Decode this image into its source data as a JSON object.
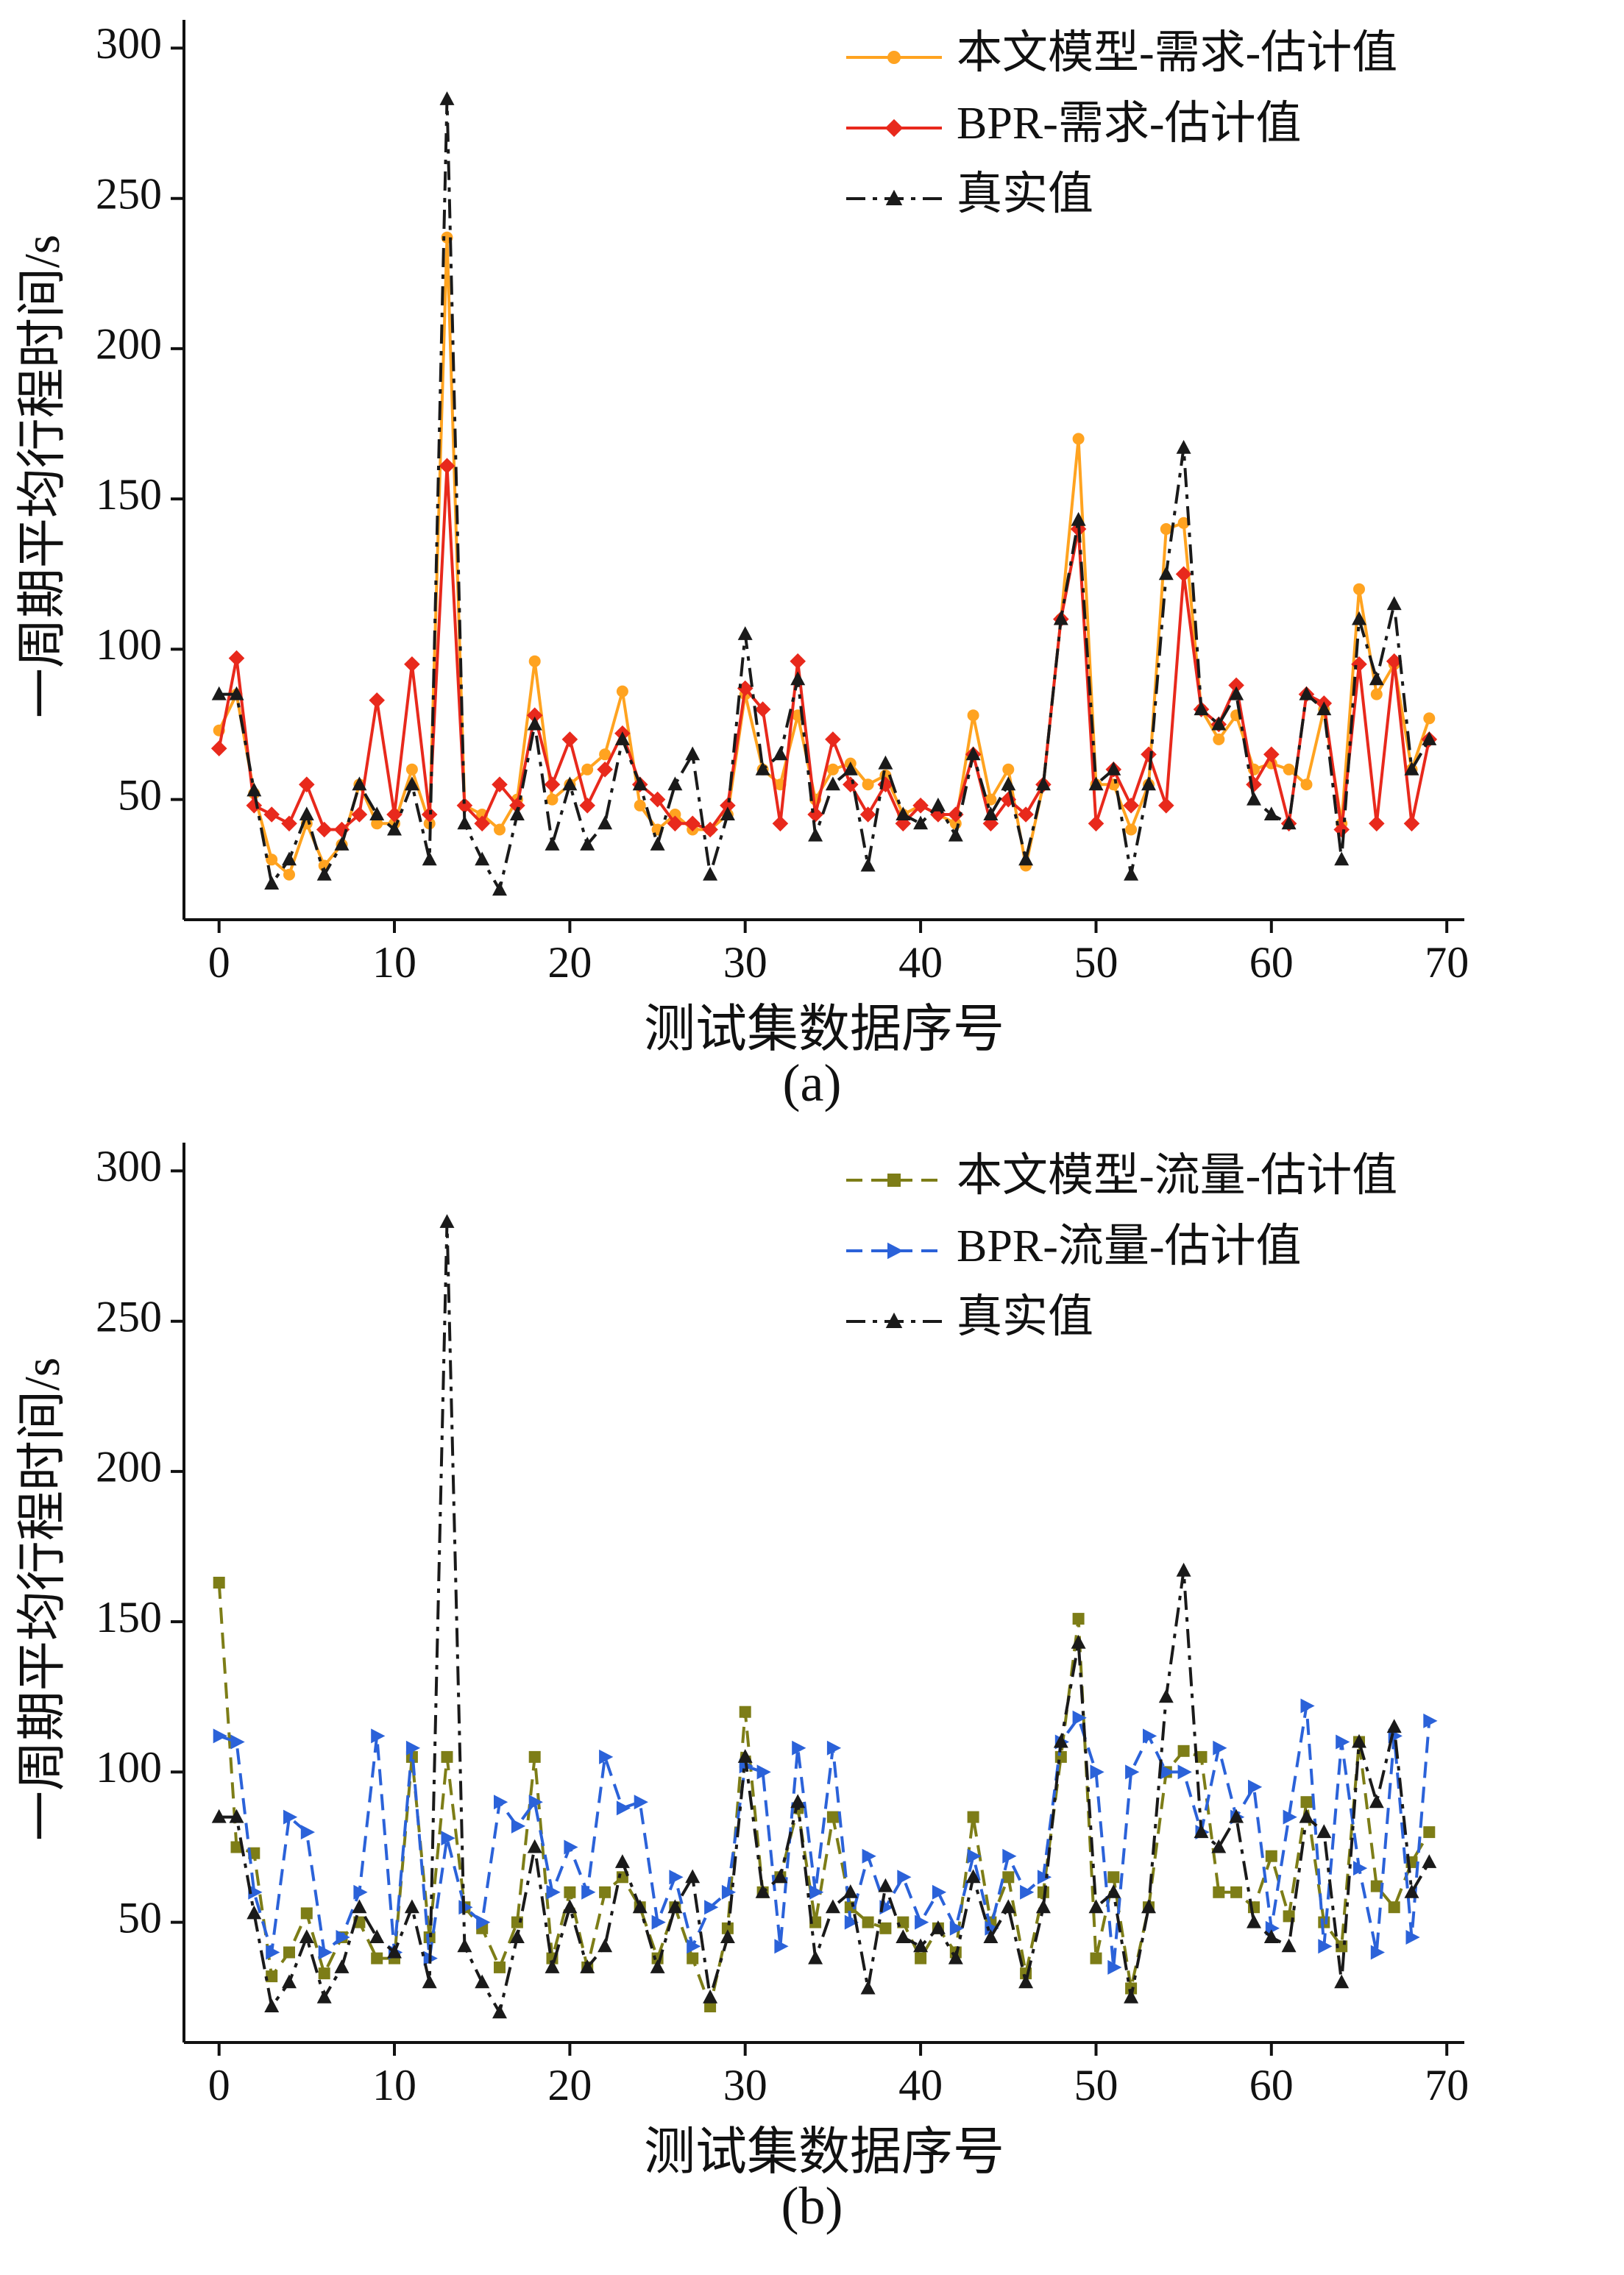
{
  "page": {
    "background": "#ffffff",
    "text_color": "#111111"
  },
  "chart_data": [
    {
      "type": "line",
      "caption": "(a)",
      "xlabel": "测试集数据序号",
      "ylabel": "一周期平均行程时间/s",
      "xlim": [
        -2,
        71
      ],
      "ylim": [
        10,
        305
      ],
      "xticks": [
        0,
        10,
        20,
        30,
        40,
        50,
        60,
        70
      ],
      "yticks": [
        50,
        100,
        150,
        200,
        250,
        300
      ],
      "grid": false,
      "legend_position": "top-right",
      "x_step": 1,
      "series": [
        {
          "name": "本文模型-需求-估计值",
          "color": "#FFA320",
          "dash": "solid",
          "marker": "circle",
          "values": [
            73,
            85,
            52,
            30,
            25,
            42,
            28,
            35,
            55,
            42,
            42,
            60,
            42,
            237,
            48,
            45,
            40,
            50,
            96,
            50,
            55,
            60,
            65,
            86,
            48,
            40,
            45,
            40,
            40,
            45,
            85,
            60,
            55,
            78,
            50,
            60,
            62,
            55,
            58,
            45,
            48,
            45,
            42,
            78,
            50,
            60,
            28,
            55,
            110,
            170,
            55,
            55,
            40,
            55,
            140,
            142,
            80,
            70,
            78,
            60,
            62,
            60,
            55,
            80,
            42,
            120,
            85,
            95,
            60,
            77
          ]
        },
        {
          "name": "BPR-需求-估计值",
          "color": "#E8291C",
          "dash": "solid",
          "marker": "diamond",
          "values": [
            67,
            97,
            48,
            45,
            42,
            55,
            40,
            40,
            45,
            83,
            45,
            95,
            45,
            161,
            48,
            42,
            55,
            48,
            78,
            55,
            70,
            48,
            60,
            72,
            55,
            50,
            42,
            42,
            40,
            48,
            87,
            80,
            42,
            96,
            45,
            70,
            55,
            45,
            55,
            42,
            48,
            45,
            45,
            65,
            42,
            50,
            45,
            55,
            110,
            140,
            42,
            60,
            48,
            65,
            48,
            125,
            80,
            75,
            88,
            55,
            65,
            42,
            85,
            82,
            40,
            95,
            42,
            96,
            42,
            70
          ]
        },
        {
          "name": "真实值",
          "color": "#1a1a1a",
          "dash": "dashdot",
          "marker": "triangle",
          "values": [
            85,
            85,
            53,
            22,
            30,
            45,
            25,
            35,
            55,
            45,
            40,
            55,
            30,
            283,
            42,
            30,
            20,
            45,
            75,
            35,
            55,
            35,
            42,
            70,
            55,
            35,
            55,
            65,
            25,
            45,
            105,
            60,
            65,
            90,
            38,
            55,
            60,
            28,
            62,
            45,
            42,
            48,
            38,
            65,
            45,
            55,
            30,
            55,
            110,
            143,
            55,
            60,
            25,
            55,
            125,
            167,
            80,
            75,
            85,
            50,
            45,
            42,
            85,
            80,
            30,
            110,
            90,
            115,
            60,
            70
          ]
        }
      ]
    },
    {
      "type": "line",
      "caption": "(b)",
      "xlabel": "测试集数据序号",
      "ylabel": "一周期平均行程时间/s",
      "xlim": [
        -2,
        71
      ],
      "ylim": [
        10,
        305
      ],
      "xticks": [
        0,
        10,
        20,
        30,
        40,
        50,
        60,
        70
      ],
      "yticks": [
        50,
        100,
        150,
        200,
        250,
        300
      ],
      "grid": false,
      "legend_position": "top-right",
      "x_step": 1,
      "series": [
        {
          "name": "本文模型-流量-估计值",
          "color": "#7D7D17",
          "dash": "dashed",
          "marker": "square",
          "values": [
            163,
            75,
            73,
            32,
            40,
            53,
            33,
            45,
            50,
            38,
            38,
            105,
            45,
            105,
            55,
            48,
            35,
            50,
            105,
            38,
            60,
            35,
            60,
            65,
            55,
            38,
            55,
            38,
            22,
            48,
            120,
            60,
            65,
            88,
            50,
            85,
            55,
            50,
            48,
            50,
            38,
            48,
            40,
            85,
            50,
            65,
            33,
            60,
            105,
            151,
            38,
            65,
            28,
            55,
            100,
            107,
            105,
            60,
            60,
            55,
            72,
            52,
            90,
            50,
            42,
            110,
            62,
            55,
            70,
            80
          ]
        },
        {
          "name": "BPR-流量-估计值",
          "color": "#2B62D9",
          "dash": "dashed",
          "marker": "tri-right",
          "values": [
            112,
            110,
            60,
            40,
            85,
            80,
            40,
            45,
            60,
            112,
            40,
            108,
            38,
            78,
            55,
            50,
            90,
            82,
            90,
            60,
            75,
            60,
            105,
            88,
            90,
            50,
            65,
            42,
            55,
            60,
            102,
            100,
            42,
            108,
            60,
            108,
            50,
            72,
            55,
            65,
            50,
            60,
            48,
            72,
            48,
            72,
            60,
            65,
            110,
            118,
            100,
            35,
            100,
            112,
            100,
            100,
            80,
            108,
            85,
            95,
            48,
            85,
            122,
            42,
            110,
            68,
            40,
            112,
            45,
            117
          ]
        },
        {
          "name": "真实值",
          "color": "#1a1a1a",
          "dash": "dashdot",
          "marker": "triangle",
          "values": [
            85,
            85,
            53,
            22,
            30,
            45,
            25,
            35,
            55,
            45,
            40,
            55,
            30,
            283,
            42,
            30,
            20,
            45,
            75,
            35,
            55,
            35,
            42,
            70,
            55,
            35,
            55,
            65,
            25,
            45,
            105,
            60,
            65,
            90,
            38,
            55,
            60,
            28,
            62,
            45,
            42,
            48,
            38,
            65,
            45,
            55,
            30,
            55,
            110,
            143,
            55,
            60,
            25,
            55,
            125,
            167,
            80,
            75,
            85,
            50,
            45,
            42,
            85,
            80,
            30,
            110,
            90,
            115,
            60,
            70
          ]
        }
      ]
    }
  ]
}
